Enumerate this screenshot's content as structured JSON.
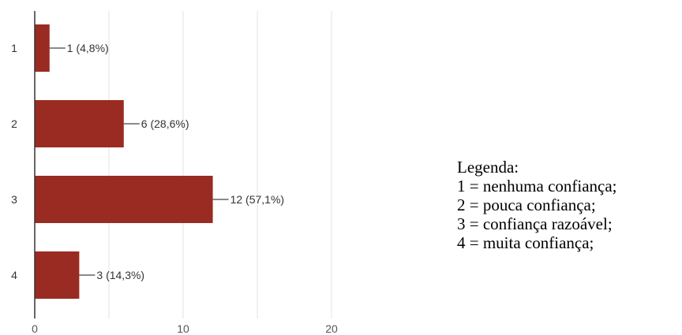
{
  "chart_data": {
    "type": "bar",
    "orientation": "horizontal",
    "categories": [
      "1",
      "2",
      "3",
      "4"
    ],
    "values": [
      1,
      6,
      12,
      3
    ],
    "value_labels": [
      "1 (4,8%)",
      "6 (28,6%)",
      "12 (57,1%)",
      "3 (14,3%)"
    ],
    "xlim": [
      0,
      20
    ],
    "x_ticks": [
      "0",
      "10",
      "20"
    ],
    "vertical_gridlines": [
      5,
      10,
      15,
      20
    ],
    "bar_color": "#9a2b22",
    "grid": true,
    "title": "",
    "xlabel": "",
    "ylabel": ""
  },
  "legend": {
    "title": "Legenda:",
    "items": [
      "1 = nenhuma confiança;",
      "2 = pouca confiança;",
      "3 = confiança razoável;",
      "4 = muita confiança;"
    ]
  }
}
